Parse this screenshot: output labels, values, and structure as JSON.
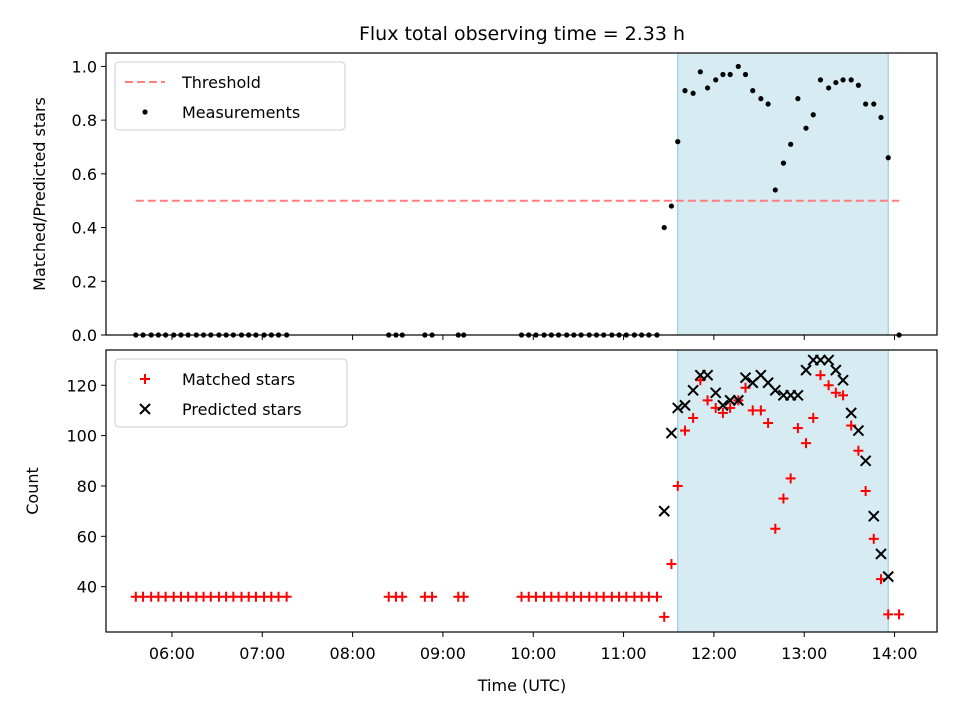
{
  "chart_data": [
    {
      "type": "scatter",
      "title": "Flux total observing time = 2.33 h",
      "xlabel": "",
      "ylabel": "Matched/Predicted stars",
      "xlim": [
        5.27,
        14.47
      ],
      "ylim": [
        0.0,
        1.05
      ],
      "yticks": [
        0.0,
        0.2,
        0.4,
        0.6,
        0.8,
        1.0
      ],
      "shaded_span": [
        11.6,
        13.93
      ],
      "threshold": {
        "name": "Threshold",
        "value": 0.5,
        "x_range": [
          5.6,
          14.05
        ],
        "color": "#ff7f7f"
      },
      "legend": [
        "Threshold",
        "Measurements"
      ],
      "series": [
        {
          "name": "Measurements",
          "color": "#000000",
          "x": [
            5.6,
            5.68,
            5.77,
            5.85,
            5.93,
            6.02,
            6.1,
            6.18,
            6.27,
            6.35,
            6.43,
            6.52,
            6.6,
            6.68,
            6.77,
            6.85,
            6.93,
            7.02,
            7.1,
            7.18,
            7.27,
            8.4,
            8.48,
            8.55,
            8.8,
            8.88,
            9.17,
            9.23,
            9.87,
            9.95,
            10.03,
            10.12,
            10.2,
            10.28,
            10.37,
            10.45,
            10.53,
            10.62,
            10.7,
            10.78,
            10.87,
            10.95,
            11.03,
            11.12,
            11.2,
            11.28,
            11.37,
            11.45,
            11.53,
            11.6,
            11.68,
            11.77,
            11.85,
            11.93,
            12.02,
            12.1,
            12.18,
            12.27,
            12.35,
            12.43,
            12.52,
            12.6,
            12.68,
            12.77,
            12.85,
            12.93,
            13.02,
            13.1,
            13.18,
            13.27,
            13.35,
            13.43,
            13.52,
            13.6,
            13.68,
            13.77,
            13.85,
            13.93,
            14.05
          ],
          "y": [
            0,
            0,
            0,
            0,
            0,
            0,
            0,
            0,
            0,
            0,
            0,
            0,
            0,
            0,
            0,
            0,
            0,
            0,
            0,
            0,
            0,
            0,
            0,
            0,
            0,
            0,
            0,
            0,
            0,
            0,
            0,
            0,
            0,
            0,
            0,
            0,
            0,
            0,
            0,
            0,
            0,
            0,
            0,
            0,
            0,
            0,
            0,
            0.4,
            0.48,
            0.72,
            0.91,
            0.9,
            0.98,
            0.92,
            0.95,
            0.97,
            0.97,
            1.0,
            0.97,
            0.91,
            0.88,
            0.86,
            0.54,
            0.64,
            0.71,
            0.88,
            0.77,
            0.82,
            0.95,
            0.92,
            0.94,
            0.95,
            0.95,
            0.93,
            0.86,
            0.86,
            0.81,
            0.66,
            0.0
          ]
        }
      ]
    },
    {
      "type": "scatter",
      "title": "",
      "xlabel": "Time (UTC)",
      "ylabel": "Count",
      "xlim": [
        5.27,
        14.47
      ],
      "ylim": [
        22,
        134
      ],
      "yticks": [
        40,
        60,
        80,
        100,
        120
      ],
      "xticks": [
        6,
        7,
        8,
        9,
        10,
        11,
        12,
        13,
        14
      ],
      "xtick_labels": [
        "06:00",
        "07:00",
        "08:00",
        "09:00",
        "10:00",
        "11:00",
        "12:00",
        "13:00",
        "14:00"
      ],
      "shaded_span": [
        11.6,
        13.93
      ],
      "legend": [
        "Matched stars",
        "Predicted stars"
      ],
      "series": [
        {
          "name": "Matched stars",
          "marker": "+",
          "color": "#ff0000",
          "x": [
            5.6,
            5.68,
            5.77,
            5.85,
            5.93,
            6.02,
            6.1,
            6.18,
            6.27,
            6.35,
            6.43,
            6.52,
            6.6,
            6.68,
            6.77,
            6.85,
            6.93,
            7.02,
            7.1,
            7.18,
            7.27,
            8.4,
            8.48,
            8.55,
            8.8,
            8.88,
            9.17,
            9.23,
            9.87,
            9.95,
            10.03,
            10.12,
            10.2,
            10.28,
            10.37,
            10.45,
            10.53,
            10.62,
            10.7,
            10.78,
            10.87,
            10.95,
            11.03,
            11.12,
            11.2,
            11.28,
            11.37,
            11.45,
            11.53,
            11.6,
            11.68,
            11.77,
            11.85,
            11.93,
            12.02,
            12.1,
            12.18,
            12.27,
            12.35,
            12.43,
            12.52,
            12.6,
            12.68,
            12.77,
            12.85,
            12.93,
            13.02,
            13.1,
            13.18,
            13.27,
            13.35,
            13.43,
            13.52,
            13.6,
            13.68,
            13.77,
            13.85,
            13.93,
            14.05
          ],
          "y": [
            36,
            36,
            36,
            36,
            36,
            36,
            36,
            36,
            36,
            36,
            36,
            36,
            36,
            36,
            36,
            36,
            36,
            36,
            36,
            36,
            36,
            36,
            36,
            36,
            36,
            36,
            36,
            36,
            36,
            36,
            36,
            36,
            36,
            36,
            36,
            36,
            36,
            36,
            36,
            36,
            36,
            36,
            36,
            36,
            36,
            36,
            36,
            28,
            49,
            80,
            102,
            107,
            122,
            114,
            111,
            109,
            111,
            114,
            119,
            110,
            110,
            105,
            63,
            75,
            83,
            103,
            97,
            107,
            124,
            120,
            117,
            116,
            104,
            94,
            78,
            59,
            43,
            29,
            29
          ]
        },
        {
          "name": "Predicted stars",
          "marker": "x",
          "color": "#000000",
          "x": [
            11.45,
            11.53,
            11.6,
            11.68,
            11.77,
            11.85,
            11.93,
            12.02,
            12.1,
            12.18,
            12.27,
            12.35,
            12.43,
            12.52,
            12.6,
            12.68,
            12.77,
            12.85,
            12.93,
            13.02,
            13.1,
            13.18,
            13.27,
            13.35,
            13.43,
            13.52,
            13.6,
            13.68,
            13.77,
            13.85,
            13.93
          ],
          "y": [
            70,
            101,
            111,
            112,
            118,
            124,
            124,
            117,
            112,
            114,
            114,
            123,
            121,
            124,
            121,
            118,
            116,
            116,
            116,
            126,
            130,
            130,
            130,
            126,
            122,
            109,
            102,
            90,
            68,
            53,
            44
          ]
        }
      ]
    }
  ]
}
